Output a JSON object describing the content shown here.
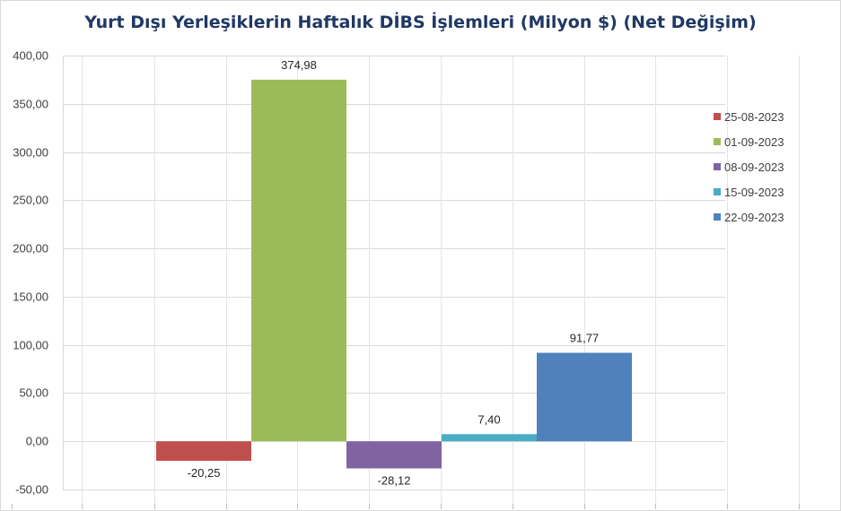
{
  "chart_data": {
    "type": "bar",
    "title": "Yurt Dışı Yerleşiklerin Haftalık DİBS İşlemleri (Milyon $) (Net Değişim)",
    "xlabel": "",
    "ylabel": "",
    "ylim": [
      -50,
      400
    ],
    "y_ticks": [
      "400,00",
      "350,00",
      "300,00",
      "250,00",
      "200,00",
      "150,00",
      "100,00",
      "50,00",
      "0,00",
      "-50,00"
    ],
    "y_tick_values": [
      400,
      350,
      300,
      250,
      200,
      150,
      100,
      50,
      0,
      -50
    ],
    "grid": true,
    "legend_position": "right",
    "series": [
      {
        "name": "25-08-2023",
        "value": -20.25,
        "label": "-20,25",
        "color": "#c0504d"
      },
      {
        "name": "01-09-2023",
        "value": 374.98,
        "label": "374,98",
        "color": "#9bbb59"
      },
      {
        "name": "08-09-2023",
        "value": -28.12,
        "label": "-28,12",
        "color": "#8064a2"
      },
      {
        "name": "15-09-2023",
        "value": 7.4,
        "label": "7,40",
        "color": "#4bacc6"
      },
      {
        "name": "22-09-2023",
        "value": 91.77,
        "label": "91,77",
        "color": "#4f81bd"
      }
    ]
  }
}
